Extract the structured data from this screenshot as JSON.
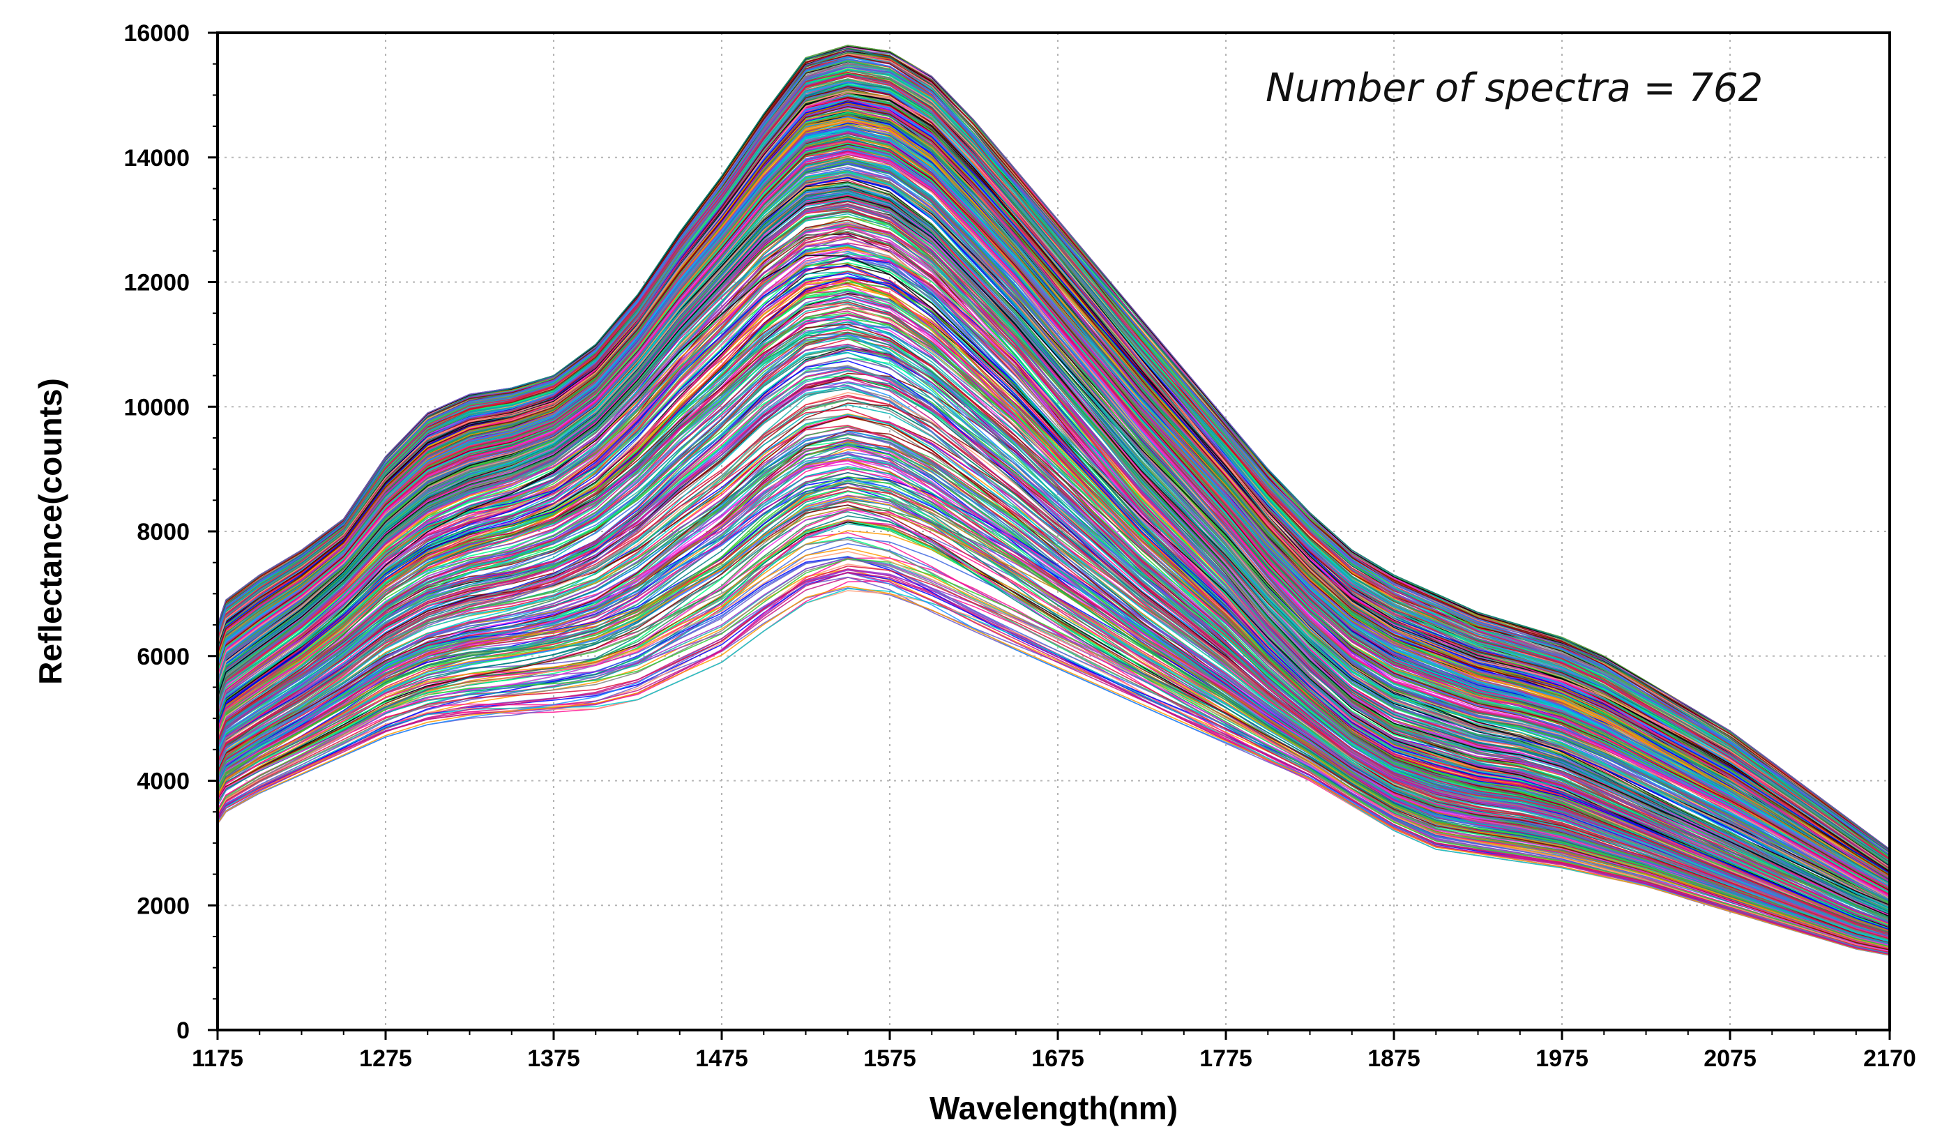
{
  "chart_data": {
    "type": "line",
    "title": "",
    "xlabel": "Wavelength(nm)",
    "ylabel": "Reflectance(counts)",
    "xlim": [
      1175,
      2170
    ],
    "ylim": [
      0,
      16000
    ],
    "x_ticks": [
      1175,
      1275,
      1375,
      1475,
      1575,
      1675,
      1775,
      1875,
      1975,
      2075,
      2170
    ],
    "x_tick_labels": [
      "1175",
      "1275",
      "1375",
      "1475",
      "1575",
      "1675",
      "1775",
      "1875",
      "1975",
      "2075",
      "2170"
    ],
    "y_ticks": [
      0,
      2000,
      4000,
      6000,
      8000,
      10000,
      12000,
      14000,
      16000
    ],
    "y_tick_labels": [
      "0",
      "2000",
      "4000",
      "6000",
      "8000",
      "10000",
      "12000",
      "14000",
      "16000"
    ],
    "grid": true,
    "annotation": "Number of spectra = 762",
    "series_count": 762,
    "x": [
      1175,
      1180,
      1200,
      1225,
      1250,
      1275,
      1300,
      1325,
      1350,
      1375,
      1400,
      1425,
      1450,
      1475,
      1500,
      1525,
      1550,
      1575,
      1600,
      1625,
      1650,
      1675,
      1700,
      1725,
      1750,
      1775,
      1800,
      1825,
      1850,
      1875,
      1900,
      1925,
      1950,
      1975,
      2000,
      2025,
      2050,
      2075,
      2100,
      2125,
      2150,
      2170
    ],
    "envelope": {
      "upper": [
        6500,
        6900,
        7300,
        7700,
        8200,
        9200,
        9900,
        10200,
        10300,
        10500,
        11000,
        11800,
        12800,
        13700,
        14700,
        15600,
        15800,
        15700,
        15300,
        14600,
        13800,
        13000,
        12200,
        11400,
        10600,
        9800,
        9000,
        8300,
        7700,
        7300,
        7000,
        6700,
        6500,
        6300,
        6000,
        5600,
        5200,
        4800,
        4300,
        3800,
        3300,
        2900
      ],
      "median": [
        5200,
        5600,
        6000,
        6500,
        7100,
        7800,
        8300,
        8600,
        8800,
        9100,
        9600,
        10300,
        11100,
        11800,
        12500,
        13000,
        13100,
        12900,
        12400,
        11700,
        11000,
        10200,
        9400,
        8600,
        7900,
        7200,
        6400,
        5700,
        5100,
        4700,
        4500,
        4300,
        4200,
        4000,
        3700,
        3400,
        3100,
        2800,
        2500,
        2200,
        1900,
        1700
      ],
      "lower": [
        3300,
        3500,
        3800,
        4100,
        4400,
        4700,
        4900,
        5000,
        5050,
        5100,
        5150,
        5300,
        5600,
        5900,
        6400,
        6850,
        7050,
        6950,
        6700,
        6400,
        6100,
        5800,
        5500,
        5200,
        4900,
        4600,
        4300,
        4000,
        3600,
        3200,
        2900,
        2800,
        2700,
        2600,
        2450,
        2300,
        2100,
        1900,
        1700,
        1500,
        1300,
        1200
      ]
    },
    "series_colors": [
      "#e6194b",
      "#3cb44b",
      "#0000ff",
      "#f032e6",
      "#00b3b3",
      "#000000",
      "#ff9900",
      "#9932cc",
      "#008080",
      "#ff1493",
      "#1e90ff",
      "#32cd32",
      "#8b0000",
      "#00ced1",
      "#ffa07a",
      "#4169e1",
      "#2e8b57",
      "#c71585",
      "#808080",
      "#00ff7f",
      "#dc143c",
      "#6a5acd",
      "#b8860b",
      "#20b2aa"
    ]
  }
}
